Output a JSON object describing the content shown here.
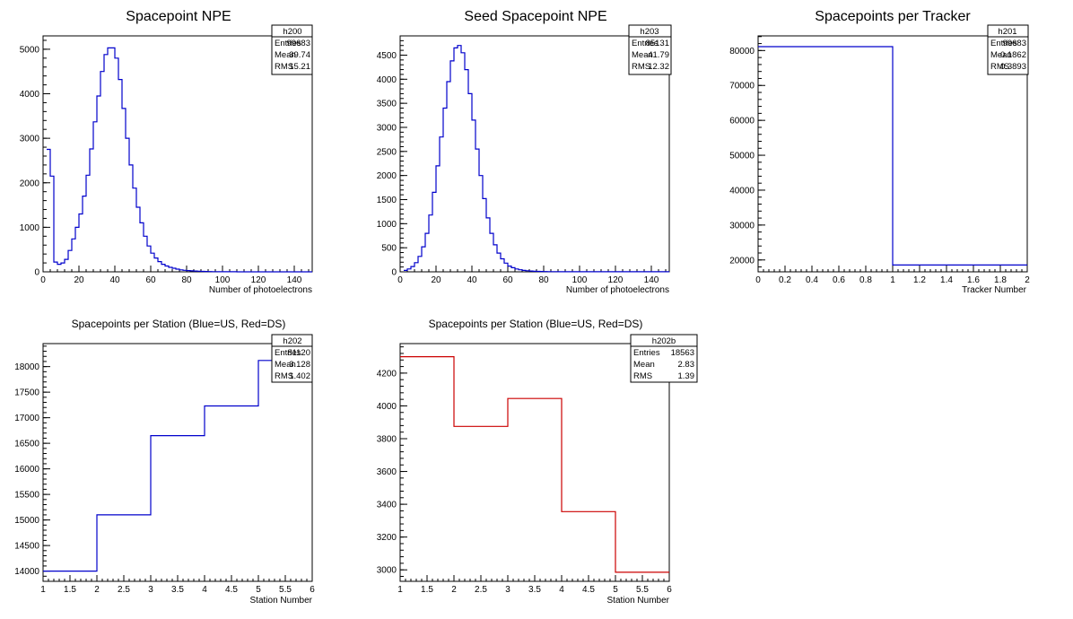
{
  "chart_data": [
    {
      "type": "histogram",
      "title": "Spacepoint NPE",
      "xlabel": "Number of photoelectrons",
      "ylabel": "",
      "xlim": [
        0,
        150
      ],
      "ylim": [
        0,
        5300
      ],
      "xticks": [
        0,
        20,
        40,
        60,
        80,
        100,
        120,
        140
      ],
      "yticks": [
        0,
        1000,
        2000,
        3000,
        4000,
        5000
      ],
      "color": "#0000cc",
      "stats": {
        "name": "h200",
        "rows": [
          [
            "Entries",
            "99683"
          ],
          [
            "Mean",
            "39.74"
          ],
          [
            "RMS",
            "15.21"
          ]
        ]
      },
      "bin_edges_start": 2,
      "bin_width": 2,
      "values": [
        2750,
        2150,
        220,
        170,
        200,
        280,
        480,
        740,
        1000,
        1300,
        1700,
        2170,
        2760,
        3370,
        3950,
        4500,
        4880,
        5030,
        5030,
        4800,
        4320,
        3670,
        3000,
        2400,
        1880,
        1450,
        1100,
        800,
        580,
        420,
        310,
        230,
        170,
        130,
        100,
        80,
        60,
        45,
        35,
        28,
        22,
        18,
        14,
        11,
        9,
        7,
        5,
        4,
        3,
        3,
        2,
        2,
        2,
        1,
        1,
        1,
        1,
        1,
        1,
        1,
        1,
        1,
        1,
        1,
        1,
        1,
        1,
        1,
        1,
        1,
        1,
        1,
        1,
        1
      ]
    },
    {
      "type": "histogram",
      "title": "Seed Spacepoint NPE",
      "xlabel": "Number of photoelectrons",
      "ylabel": "",
      "xlim": [
        0,
        150
      ],
      "ylim": [
        0,
        4900
      ],
      "xticks": [
        0,
        20,
        40,
        60,
        80,
        100,
        120,
        140
      ],
      "yticks": [
        0,
        500,
        1000,
        1500,
        2000,
        2500,
        3000,
        3500,
        4000,
        4500
      ],
      "color": "#0000cc",
      "stats": {
        "name": "h203",
        "rows": [
          [
            "Entries",
            "85131"
          ],
          [
            "Mean",
            "41.79"
          ],
          [
            "RMS",
            "12.32"
          ]
        ]
      },
      "bin_edges_start": 2,
      "bin_width": 2,
      "values": [
        30,
        60,
        110,
        190,
        320,
        520,
        800,
        1180,
        1650,
        2200,
        2800,
        3400,
        3950,
        4380,
        4650,
        4700,
        4550,
        4200,
        3700,
        3150,
        2550,
        2000,
        1520,
        1120,
        800,
        560,
        390,
        270,
        180,
        120,
        85,
        60,
        42,
        30,
        22,
        16,
        12,
        9,
        7,
        5,
        4,
        3,
        3,
        2,
        2,
        2,
        1,
        1,
        1,
        1,
        1,
        1,
        1,
        1,
        1,
        1,
        1,
        1,
        1,
        1,
        1,
        1,
        1,
        1,
        1,
        1,
        1,
        1,
        1,
        1,
        1,
        1,
        1,
        1
      ]
    },
    {
      "type": "histogram",
      "title": "Spacepoints per Tracker",
      "xlabel": "Tracker Number",
      "ylabel": "",
      "xlim": [
        0,
        2
      ],
      "ylim": [
        16600,
        84200
      ],
      "xticks": [
        0,
        0.2,
        0.4,
        0.6,
        0.8,
        1,
        1.2,
        1.4,
        1.6,
        1.8,
        2
      ],
      "yticks": [
        20000,
        30000,
        40000,
        50000,
        60000,
        70000,
        80000
      ],
      "color": "#0000cc",
      "stats": {
        "name": "h201",
        "rows": [
          [
            "Entries",
            "99683"
          ],
          [
            "Mean",
            "0.1862"
          ],
          [
            "RMS",
            "0.3893"
          ]
        ]
      },
      "bin_edges": [
        0,
        1,
        2
      ],
      "values": [
        81120,
        18563
      ]
    },
    {
      "type": "histogram",
      "title": "Spacepoints per Station (Blue=US, Red=DS)",
      "xlabel": "Station Number",
      "ylabel": "",
      "xlim": [
        1,
        6
      ],
      "ylim": [
        13800,
        18450
      ],
      "xticks": [
        1,
        1.5,
        2,
        2.5,
        3,
        3.5,
        4,
        4.5,
        5,
        5.5,
        6
      ],
      "yticks": [
        14000,
        14500,
        15000,
        15500,
        16000,
        16500,
        17000,
        17500,
        18000
      ],
      "color": "#0000cc",
      "stats": {
        "name": "h202",
        "rows": [
          [
            "Entries",
            "81120"
          ],
          [
            "Mean",
            "3.128"
          ],
          [
            "RMS",
            "1.402"
          ]
        ]
      },
      "bin_edges": [
        1,
        2,
        3,
        4,
        5,
        6
      ],
      "values": [
        14000,
        15100,
        16650,
        17230,
        18120
      ]
    },
    {
      "type": "histogram",
      "title": "Spacepoints per Station (Blue=US, Red=DS)",
      "xlabel": "Station Number",
      "ylabel": "",
      "xlim": [
        1,
        6
      ],
      "ylim": [
        2930,
        4380
      ],
      "xticks": [
        1,
        1.5,
        2,
        2.5,
        3,
        3.5,
        4,
        4.5,
        5,
        5.5,
        6
      ],
      "yticks": [
        3000,
        3200,
        3400,
        3600,
        3800,
        4000,
        4200
      ],
      "color": "#cc0000",
      "stats": {
        "name": "h202b",
        "rows": [
          [
            "Entries",
            "18563"
          ],
          [
            "Mean",
            "2.83"
          ],
          [
            "RMS",
            "1.39"
          ]
        ]
      },
      "bin_edges": [
        1,
        2,
        3,
        4,
        5,
        6
      ],
      "values": [
        4300,
        3875,
        4045,
        3355,
        2985
      ]
    }
  ]
}
